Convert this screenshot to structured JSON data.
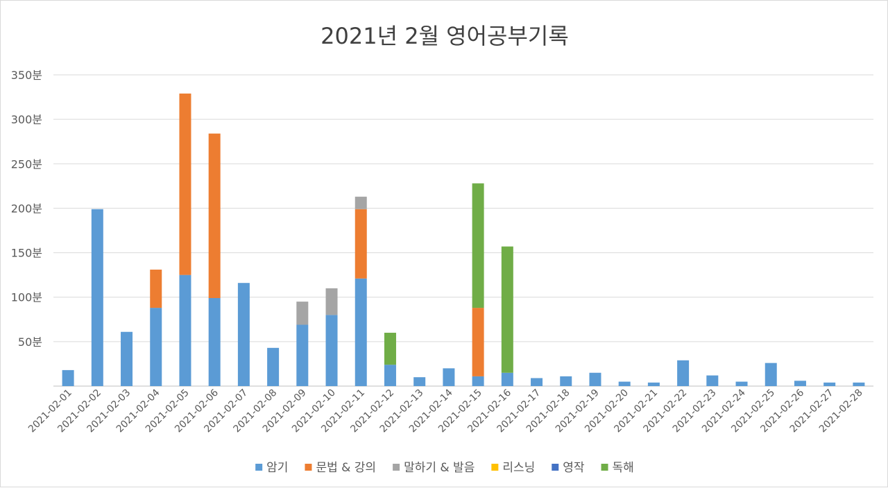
{
  "chart_data": {
    "type": "bar",
    "stacked": true,
    "title": "2021년 2월 영어공부기록",
    "xlabel": "",
    "ylabel": "",
    "ylim": [
      0,
      350
    ],
    "ytick_step": 50,
    "ytick_suffix": "분",
    "grid": true,
    "legend_position": "bottom",
    "categories": [
      "2021-02-01",
      "2021-02-02",
      "2021-02-03",
      "2021-02-04",
      "2021-02-05",
      "2021-02-06",
      "2021-02-07",
      "2021-02-08",
      "2021-02-09",
      "2021-02-10",
      "2021-02-11",
      "2021-02-12",
      "2021-02-13",
      "2021-02-14",
      "2021-02-15",
      "2021-02-16",
      "2021-02-17",
      "2021-02-18",
      "2021-02-19",
      "2021-02-20",
      "2021-02-21",
      "2021-02-22",
      "2021-02-23",
      "2021-02-24",
      "2021-02-25",
      "2021-02-26",
      "2021-02-27",
      "2021-02-28"
    ],
    "series": [
      {
        "name": "암기",
        "color": "#5b9bd5",
        "values": [
          18,
          199,
          61,
          88,
          125,
          99,
          116,
          43,
          69,
          80,
          121,
          24,
          10,
          20,
          11,
          15,
          9,
          11,
          15,
          5,
          4,
          29,
          12,
          5,
          26,
          6,
          4,
          4
        ]
      },
      {
        "name": "문법 & 강의",
        "color": "#ed7d31",
        "values": [
          0,
          0,
          0,
          43,
          204,
          185,
          0,
          0,
          0,
          0,
          78,
          0,
          0,
          0,
          77,
          0,
          0,
          0,
          0,
          0,
          0,
          0,
          0,
          0,
          0,
          0,
          0,
          0
        ]
      },
      {
        "name": "말하기 & 발음",
        "color": "#a5a5a5",
        "values": [
          0,
          0,
          0,
          0,
          0,
          0,
          0,
          0,
          26,
          30,
          14,
          0,
          0,
          0,
          0,
          0,
          0,
          0,
          0,
          0,
          0,
          0,
          0,
          0,
          0,
          0,
          0,
          0
        ]
      },
      {
        "name": "리스닝",
        "color": "#ffc000",
        "values": [
          0,
          0,
          0,
          0,
          0,
          0,
          0,
          0,
          0,
          0,
          0,
          0,
          0,
          0,
          0,
          0,
          0,
          0,
          0,
          0,
          0,
          0,
          0,
          0,
          0,
          0,
          0,
          0
        ]
      },
      {
        "name": "영작",
        "color": "#4472c4",
        "values": [
          0,
          0,
          0,
          0,
          0,
          0,
          0,
          0,
          0,
          0,
          0,
          0,
          0,
          0,
          0,
          0,
          0,
          0,
          0,
          0,
          0,
          0,
          0,
          0,
          0,
          0,
          0,
          0
        ]
      },
      {
        "name": "독해",
        "color": "#70ad47",
        "values": [
          0,
          0,
          0,
          0,
          0,
          0,
          0,
          0,
          0,
          0,
          0,
          36,
          0,
          0,
          140,
          142,
          0,
          0,
          0,
          0,
          0,
          0,
          0,
          0,
          0,
          0,
          0,
          0
        ]
      }
    ]
  }
}
